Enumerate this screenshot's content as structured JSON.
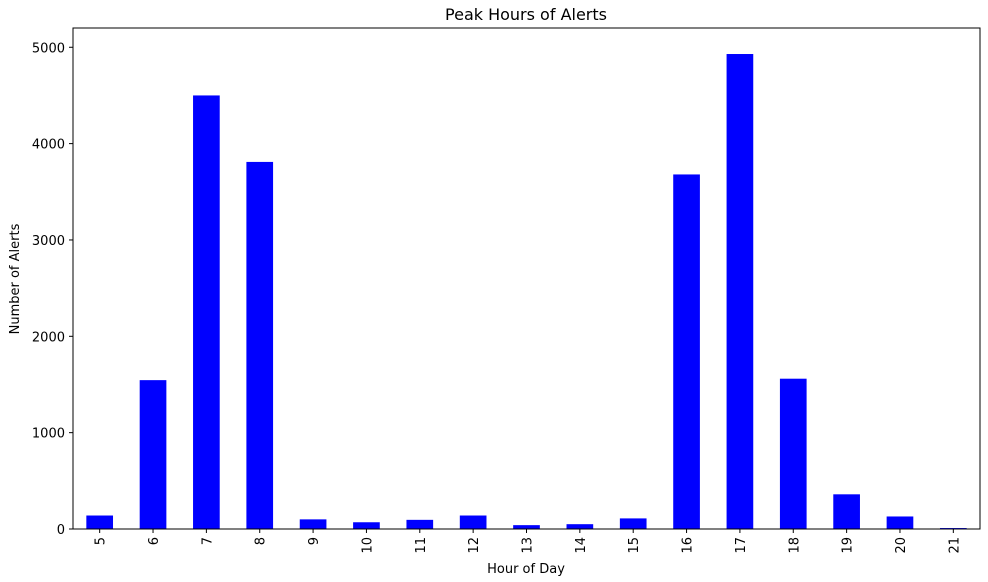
{
  "chart_data": {
    "type": "bar",
    "title": "Peak Hours of Alerts",
    "xlabel": "Hour of Day",
    "ylabel": "Number of Alerts",
    "categories": [
      "5",
      "6",
      "7",
      "8",
      "9",
      "10",
      "11",
      "12",
      "13",
      "14",
      "15",
      "16",
      "17",
      "18",
      "19",
      "20",
      "21"
    ],
    "values": [
      140,
      1545,
      4500,
      3810,
      100,
      70,
      95,
      140,
      40,
      50,
      110,
      3680,
      4930,
      1560,
      360,
      130,
      10
    ],
    "ylim": [
      0,
      5200
    ],
    "yticks": [
      0,
      1000,
      2000,
      3000,
      4000,
      5000
    ],
    "ytick_labels": [
      "0",
      "1000",
      "2000",
      "3000",
      "4000",
      "5000"
    ],
    "bar_color": "#0000ff",
    "grid": false,
    "legend": false
  }
}
